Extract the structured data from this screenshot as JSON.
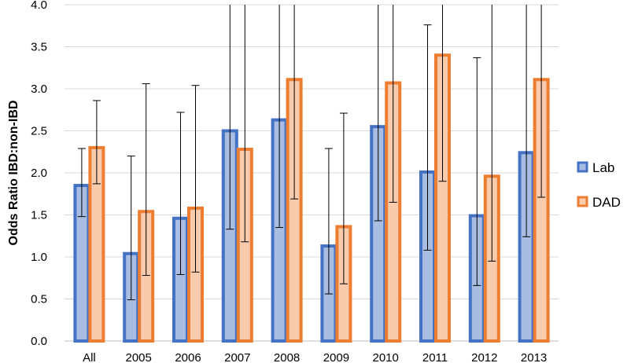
{
  "chart_data": {
    "type": "bar",
    "title": "",
    "xlabel": "",
    "ylabel": "Odds Ratio IBD:non-IBD",
    "ylim": [
      0,
      4.0
    ],
    "yticks": [
      "0.0",
      "0.5",
      "1.0",
      "1.5",
      "2.0",
      "2.5",
      "3.0",
      "3.5",
      "4.0"
    ],
    "grid": true,
    "legend_position": "right",
    "categories": [
      "All",
      "2005",
      "2006",
      "2007",
      "2008",
      "2009",
      "2010",
      "2011",
      "2012",
      "2013"
    ],
    "series": [
      {
        "name": "Lab",
        "stroke": "#4472c4",
        "fill": "#a9bde3",
        "values": [
          1.85,
          1.04,
          1.46,
          2.5,
          2.63,
          1.13,
          2.55,
          2.01,
          1.49,
          2.24
        ],
        "err_low": [
          1.48,
          0.49,
          0.79,
          1.33,
          1.35,
          0.56,
          1.43,
          1.08,
          0.66,
          1.24
        ],
        "err_high": [
          2.29,
          2.2,
          2.72,
          4.0,
          4.0,
          2.29,
          4.0,
          3.76,
          3.37,
          4.0
        ]
      },
      {
        "name": "DAD",
        "stroke": "#ed7d31",
        "fill": "#f8cbad",
        "values": [
          2.3,
          1.54,
          1.58,
          2.28,
          3.11,
          1.36,
          3.07,
          3.4,
          1.96,
          3.11
        ],
        "err_low": [
          1.87,
          0.78,
          0.82,
          1.18,
          1.69,
          0.68,
          1.65,
          1.9,
          0.95,
          1.71
        ],
        "err_high": [
          2.86,
          3.06,
          3.04,
          4.0,
          4.0,
          2.71,
          4.0,
          4.0,
          4.0,
          4.0
        ]
      }
    ]
  }
}
